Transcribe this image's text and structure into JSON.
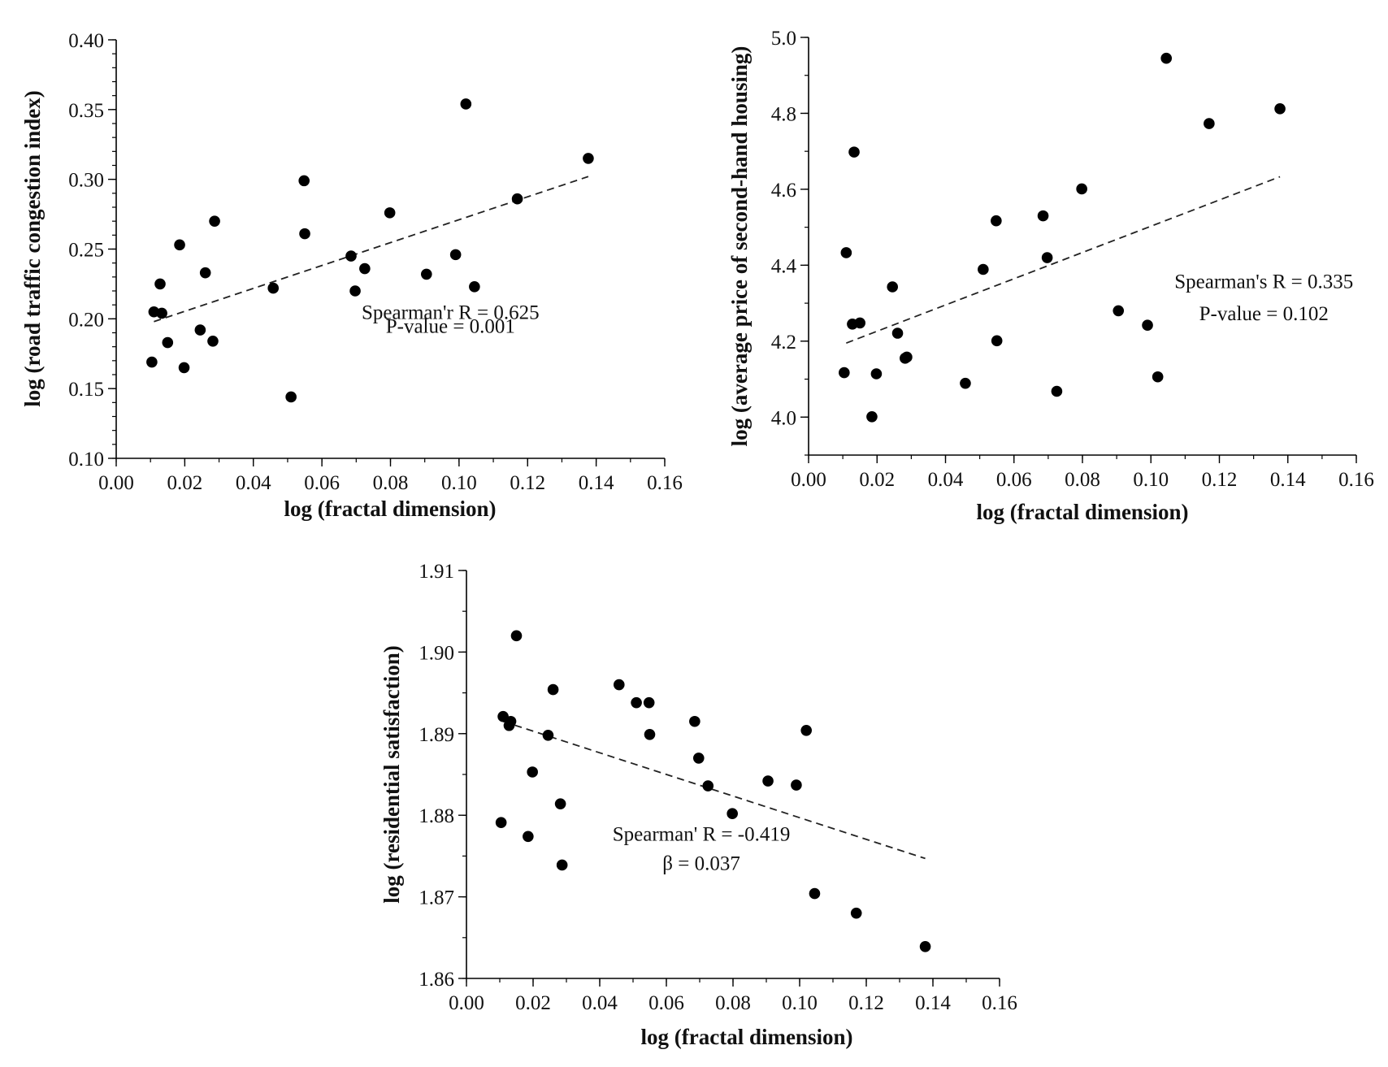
{
  "figure": {
    "background": "#ffffff",
    "point_color": "#000000",
    "line_color": "#222222"
  },
  "chart_data": [
    {
      "id": "chart-traffic",
      "type": "scatter",
      "title": "",
      "xlabel": "log (fractal dimension)",
      "ylabel": "log (road traffic congestion index)",
      "xlim": [
        0.0,
        0.16
      ],
      "ylim": [
        0.1,
        0.4
      ],
      "xticks": [
        "0.00",
        "0.02",
        "0.04",
        "0.06",
        "0.08",
        "0.10",
        "0.12",
        "0.14",
        "0.16"
      ],
      "yticks": [
        "0.10",
        "0.15",
        "0.20",
        "0.25",
        "0.30",
        "0.35",
        "0.40"
      ],
      "x_tick_values": [
        0.0,
        0.02,
        0.04,
        0.06,
        0.08,
        0.1,
        0.12,
        0.14,
        0.16
      ],
      "y_tick_values": [
        0.1,
        0.15,
        0.2,
        0.25,
        0.3,
        0.35,
        0.4
      ],
      "x_minor_step": 0.01,
      "y_minor_step": 0.01,
      "points": [
        [
          0.0104,
          0.169
        ],
        [
          0.011,
          0.205
        ],
        [
          0.0128,
          0.225
        ],
        [
          0.0133,
          0.204
        ],
        [
          0.015,
          0.183
        ],
        [
          0.0185,
          0.253
        ],
        [
          0.0198,
          0.165
        ],
        [
          0.0245,
          0.192
        ],
        [
          0.026,
          0.233
        ],
        [
          0.0282,
          0.184
        ],
        [
          0.0287,
          0.27
        ],
        [
          0.0458,
          0.222
        ],
        [
          0.051,
          0.144
        ],
        [
          0.0548,
          0.299
        ],
        [
          0.055,
          0.261
        ],
        [
          0.0685,
          0.245
        ],
        [
          0.0697,
          0.22
        ],
        [
          0.0725,
          0.236
        ],
        [
          0.0798,
          0.276
        ],
        [
          0.0905,
          0.232
        ],
        [
          0.099,
          0.246
        ],
        [
          0.102,
          0.354
        ],
        [
          0.1045,
          0.223
        ],
        [
          0.117,
          0.286
        ],
        [
          0.1377,
          0.315
        ]
      ],
      "fit_line": [
        [
          0.011,
          0.198
        ],
        [
          0.1377,
          0.302
        ]
      ],
      "annotation_lines": [
        "Spearman'r R = 0.625",
        "P-value = 0.001"
      ],
      "annotation_anchor": [
        0.0975,
        0.2,
        0.19
      ]
    },
    {
      "id": "chart-housing",
      "type": "scatter",
      "title": "",
      "xlabel": "log (fractal dimension)",
      "ylabel": "log (average price of second-hand housing)",
      "xlim": [
        0.0,
        0.16
      ],
      "ylim": [
        3.9,
        5.0
      ],
      "xticks": [
        "0.00",
        "0.02",
        "0.04",
        "0.06",
        "0.08",
        "0.10",
        "0.12",
        "0.14",
        "0.16"
      ],
      "yticks": [
        "4.0",
        "4.2",
        "4.4",
        "4.6",
        "4.8",
        "5.0"
      ],
      "x_tick_values": [
        0.0,
        0.02,
        0.04,
        0.06,
        0.08,
        0.1,
        0.12,
        0.14,
        0.16
      ],
      "y_tick_values": [
        4.0,
        4.2,
        4.4,
        4.6,
        4.8,
        5.0
      ],
      "x_minor_step": 0.01,
      "y_minor_step": 0.1,
      "points": [
        [
          0.0104,
          4.117
        ],
        [
          0.011,
          4.433
        ],
        [
          0.0128,
          4.245
        ],
        [
          0.0133,
          4.698
        ],
        [
          0.015,
          4.248
        ],
        [
          0.0185,
          4.001
        ],
        [
          0.0198,
          4.114
        ],
        [
          0.0245,
          4.343
        ],
        [
          0.026,
          4.221
        ],
        [
          0.0282,
          4.155
        ],
        [
          0.0287,
          4.158
        ],
        [
          0.0458,
          4.089
        ],
        [
          0.051,
          4.389
        ],
        [
          0.0548,
          4.517
        ],
        [
          0.055,
          4.201
        ],
        [
          0.0685,
          4.53
        ],
        [
          0.0697,
          4.42
        ],
        [
          0.0725,
          4.068
        ],
        [
          0.0798,
          4.601
        ],
        [
          0.0905,
          4.28
        ],
        [
          0.099,
          4.242
        ],
        [
          0.102,
          4.106
        ],
        [
          0.1045,
          4.945
        ],
        [
          0.117,
          4.773
        ],
        [
          0.1377,
          4.812
        ]
      ],
      "fit_line": [
        [
          0.011,
          4.195
        ],
        [
          0.1377,
          4.633
        ]
      ],
      "annotation_lines": [
        "Spearman's R = 0.335",
        "P-value = 0.102"
      ],
      "annotation_anchor": [
        0.133,
        4.34,
        4.255
      ]
    },
    {
      "id": "chart-satisfaction",
      "type": "scatter",
      "title": "",
      "xlabel": "log (fractal dimension)",
      "ylabel": "log (residential satisfaction)",
      "xlim": [
        0.0,
        0.16
      ],
      "ylim": [
        1.86,
        1.91
      ],
      "xticks": [
        "0.00",
        "0.02",
        "0.04",
        "0.06",
        "0.08",
        "0.10",
        "0.12",
        "0.14",
        "0.16"
      ],
      "yticks": [
        "1.86",
        "1.87",
        "1.88",
        "1.89",
        "1.90",
        "1.91"
      ],
      "x_tick_values": [
        0.0,
        0.02,
        0.04,
        0.06,
        0.08,
        0.1,
        0.12,
        0.14,
        0.16
      ],
      "y_tick_values": [
        1.86,
        1.87,
        1.88,
        1.89,
        1.9,
        1.91
      ],
      "x_minor_step": 0.01,
      "y_minor_step": 0.005,
      "points": [
        [
          0.0104,
          1.8791
        ],
        [
          0.011,
          1.8921
        ],
        [
          0.0128,
          1.891
        ],
        [
          0.0133,
          1.8915
        ],
        [
          0.015,
          1.902
        ],
        [
          0.0185,
          1.8774
        ],
        [
          0.0198,
          1.8853
        ],
        [
          0.0245,
          1.8898
        ],
        [
          0.026,
          1.8954
        ],
        [
          0.0282,
          1.8814
        ],
        [
          0.0287,
          1.8739
        ],
        [
          0.0458,
          1.896
        ],
        [
          0.051,
          1.8938
        ],
        [
          0.0548,
          1.8938
        ],
        [
          0.055,
          1.8899
        ],
        [
          0.0685,
          1.8915
        ],
        [
          0.0697,
          1.887
        ],
        [
          0.0725,
          1.8836
        ],
        [
          0.0798,
          1.8802
        ],
        [
          0.0905,
          1.8842
        ],
        [
          0.099,
          1.8837
        ],
        [
          0.102,
          1.8904
        ],
        [
          0.1045,
          1.8704
        ],
        [
          0.117,
          1.868
        ],
        [
          0.1377,
          1.8639
        ]
      ],
      "fit_line": [
        [
          0.011,
          1.8915
        ],
        [
          0.1377,
          1.8747
        ]
      ],
      "annotation_lines": [
        "Spearman' R = -0.419",
        "β = 0.037"
      ],
      "annotation_anchor": [
        0.0705,
        1.8769,
        1.8733
      ]
    }
  ]
}
